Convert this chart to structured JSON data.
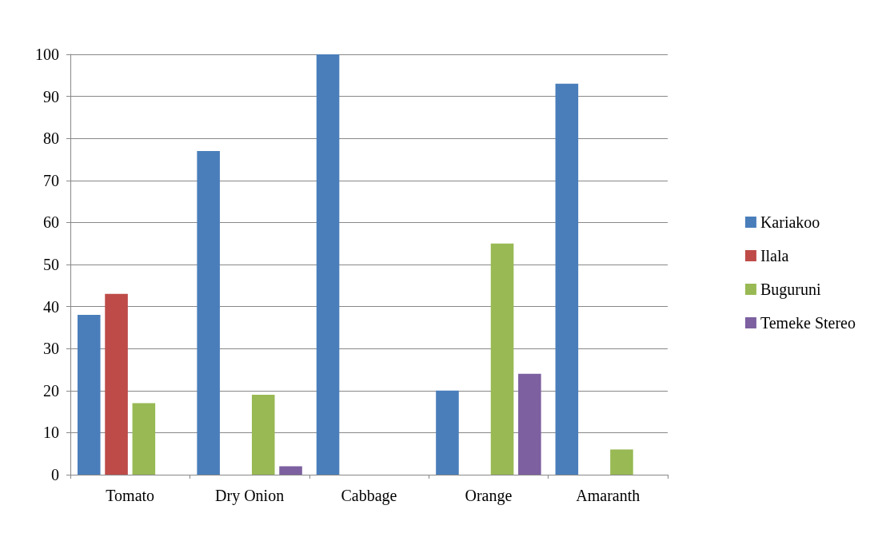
{
  "chart_data": {
    "type": "bar",
    "categories": [
      "Tomato",
      "Dry Onion",
      "Cabbage",
      "Orange",
      "Amaranth"
    ],
    "series": [
      {
        "name": "Kariakoo",
        "color": "#4a7ebb",
        "values": [
          38,
          77,
          100,
          20,
          93
        ]
      },
      {
        "name": "Ilala",
        "color": "#be4b48",
        "values": [
          43,
          null,
          null,
          null,
          null
        ]
      },
      {
        "name": "Buguruni",
        "color": "#98b954",
        "values": [
          17,
          19,
          null,
          55,
          6
        ]
      },
      {
        "name": "Temeke Stereo",
        "color": "#7d60a0",
        "values": [
          null,
          2,
          null,
          24,
          null
        ]
      }
    ],
    "ylim": [
      0,
      100
    ],
    "yticks": [
      0,
      10,
      20,
      30,
      40,
      50,
      60,
      70,
      80,
      90,
      100
    ],
    "grid": "y",
    "legend": "right"
  }
}
